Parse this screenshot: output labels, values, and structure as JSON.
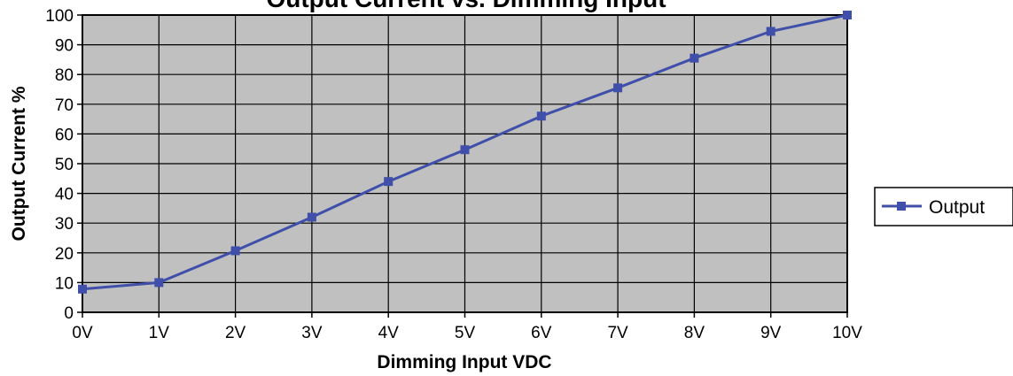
{
  "chart_data": {
    "type": "line",
    "title": "Output Current vs. Dimming Input",
    "xlabel": "Dimming Input VDC",
    "ylabel": "Output Current %",
    "categories": [
      "0V",
      "1V",
      "2V",
      "3V",
      "4V",
      "5V",
      "6V",
      "7V",
      "8V",
      "9V",
      "10V"
    ],
    "y_ticks": [
      "0",
      "10",
      "20",
      "30",
      "40",
      "50",
      "60",
      "70",
      "80",
      "90",
      "100"
    ],
    "series": [
      {
        "name": "Output",
        "values": [
          7.8,
          10,
          20.7,
          32,
          44,
          54.7,
          66,
          75.5,
          85.5,
          94.5,
          100
        ]
      }
    ],
    "ylim": [
      0,
      100
    ],
    "grid": true,
    "legend": "right",
    "colors": {
      "plot_background": "#c0c0c0",
      "series": "#3f4faa",
      "grid": "#000000"
    }
  }
}
